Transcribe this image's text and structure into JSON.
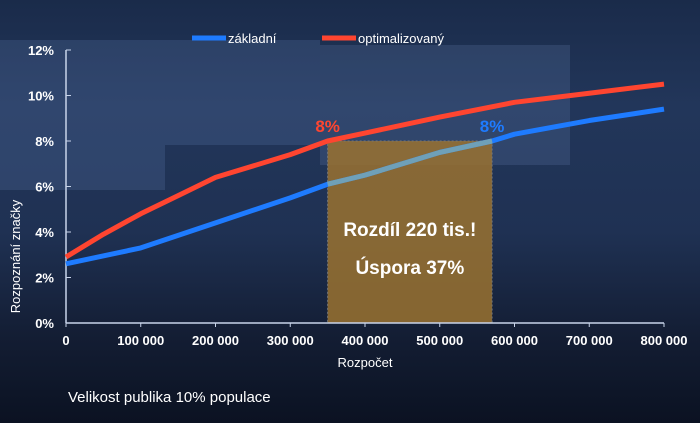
{
  "chart_data": {
    "type": "line",
    "xlabel": "Rozpočet",
    "ylabel": "Rozpoznání značky",
    "xlim": [
      0,
      800000
    ],
    "ylim": [
      0,
      12
    ],
    "x_ticks": [
      "0",
      "100 000",
      "200 000",
      "300 000",
      "400 000",
      "500 000",
      "600 000",
      "700 000",
      "800 000"
    ],
    "y_ticks": [
      "0%",
      "2%",
      "4%",
      "6%",
      "8%",
      "10%",
      "12%"
    ],
    "legend_position": "top",
    "grid": false,
    "series": [
      {
        "name": "základní",
        "color": "#1e7bff",
        "x": [
          0,
          100000,
          200000,
          300000,
          350000,
          400000,
          500000,
          570000,
          600000,
          700000,
          800000
        ],
        "y": [
          2.6,
          3.3,
          4.4,
          5.5,
          6.1,
          6.5,
          7.5,
          8.0,
          8.3,
          8.9,
          9.4
        ]
      },
      {
        "name": "optimalizovaný",
        "color": "#ff4530",
        "x": [
          0,
          50000,
          100000,
          150000,
          200000,
          300000,
          350000,
          400000,
          500000,
          600000,
          700000,
          800000
        ],
        "y": [
          2.9,
          3.9,
          4.8,
          5.6,
          6.4,
          7.4,
          8.0,
          8.35,
          9.05,
          9.7,
          10.1,
          10.5
        ]
      }
    ],
    "highlight": {
      "x_from": 350000,
      "x_to": 570000,
      "y_to": 8,
      "color": "#9a7230",
      "lines": [
        "Rozdíl 220 tis.!",
        "Úspora 37%"
      ]
    },
    "annotations": [
      {
        "text": "8%",
        "x": 350000,
        "y": 8,
        "color": "#ff4530"
      },
      {
        "text": "8%",
        "x": 570000,
        "y": 8,
        "color": "#1e7bff"
      }
    ]
  },
  "footnote": "Velikost publika 10% populace"
}
